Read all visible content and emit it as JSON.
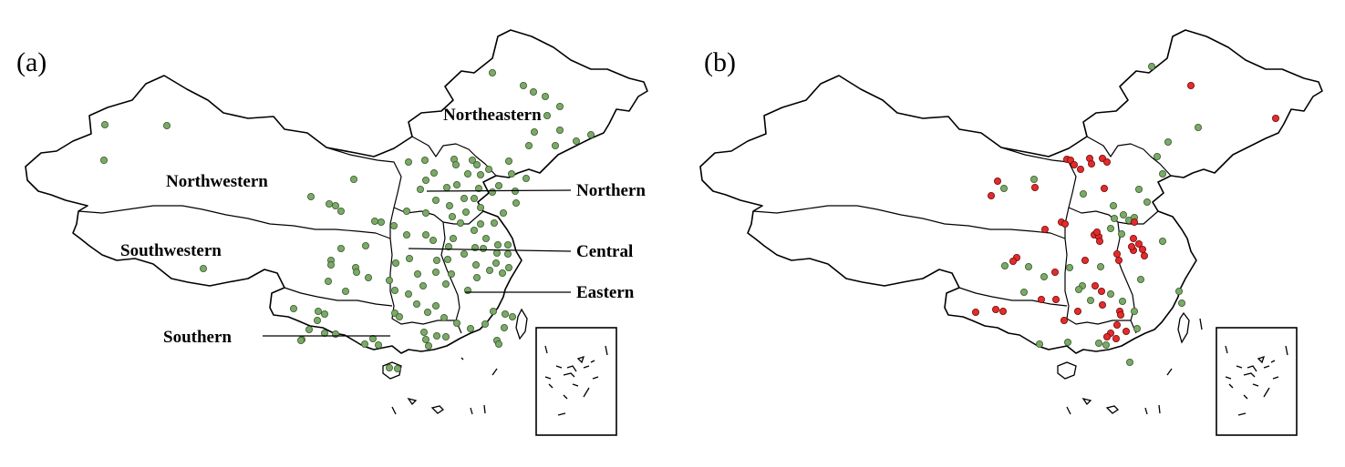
{
  "figure": {
    "panels": [
      {
        "label": "(a)",
        "regions": [
          "Northeastern",
          "Northwestern",
          "Northern",
          "Southwestern",
          "Central",
          "Eastern",
          "Southern"
        ],
        "markers": {
          "green": [
            [
              115,
              137
            ],
            [
              183,
              138
            ],
            [
              114,
              176
            ],
            [
              540,
              80
            ],
            [
              574,
              94
            ],
            [
              585,
              101
            ],
            [
              598,
              106
            ],
            [
              614,
              117
            ],
            [
              600,
              127
            ],
            [
              614,
              143
            ],
            [
              586,
              145
            ],
            [
              648,
              148
            ],
            [
              632,
              155
            ],
            [
              609,
              160
            ],
            [
              580,
              160
            ],
            [
              558,
              177
            ],
            [
              561,
              191
            ],
            [
              577,
              196
            ],
            [
              448,
              178
            ],
            [
              466,
              176
            ],
            [
              498,
              175
            ],
            [
              500,
              181
            ],
            [
              518,
              176
            ],
            [
              523,
              181
            ],
            [
              513,
              191
            ],
            [
              527,
              192
            ],
            [
              536,
              186
            ],
            [
              501,
              203
            ],
            [
              525,
              207
            ],
            [
              540,
              211
            ],
            [
              547,
              204
            ],
            [
              565,
              210
            ],
            [
              461,
              208
            ],
            [
              467,
              198
            ],
            [
              476,
              190
            ],
            [
              490,
              206
            ],
            [
              388,
              197
            ],
            [
              341,
              216
            ],
            [
              361,
              224
            ],
            [
              368,
              226
            ],
            [
              374,
              232
            ],
            [
              411,
              243
            ],
            [
              418,
              244
            ],
            [
              432,
              248
            ],
            [
              446,
              232
            ],
            [
              467,
              234
            ],
            [
              478,
              220
            ],
            [
              493,
              226
            ],
            [
              509,
              218
            ],
            [
              520,
              218
            ],
            [
              527,
              228
            ],
            [
              511,
              233
            ],
            [
              527,
              246
            ],
            [
              542,
              245
            ],
            [
              552,
              234
            ],
            [
              566,
              223
            ],
            [
              467,
              258
            ],
            [
              475,
              264
            ],
            [
              496,
              238
            ],
            [
              505,
              245
            ],
            [
              520,
              253
            ],
            [
              533,
              262
            ],
            [
              546,
              269
            ],
            [
              557,
              269
            ],
            [
              545,
              278
            ],
            [
              557,
              279
            ],
            [
              497,
              262
            ],
            [
              492,
              271
            ],
            [
              509,
              279
            ],
            [
              521,
              272
            ],
            [
              530,
              273
            ],
            [
              551,
              300
            ],
            [
              558,
              294
            ],
            [
              544,
              289
            ],
            [
              537,
              297
            ],
            [
              522,
              291
            ],
            [
              523,
              305
            ],
            [
              513,
              319
            ],
            [
              446,
              258
            ],
            [
              449,
              284
            ],
            [
              434,
              289
            ],
            [
              458,
              301
            ],
            [
              464,
              314
            ],
            [
              478,
              299
            ],
            [
              495,
              301
            ],
            [
              489,
              312
            ],
            [
              491,
              285
            ],
            [
              479,
              286
            ],
            [
              374,
              273
            ],
            [
              401,
              270
            ],
            [
              363,
              286
            ],
            [
              363,
              291
            ],
            [
              390,
              294
            ],
            [
              391,
              299
            ],
            [
              360,
              309
            ],
            [
              379,
              320
            ],
            [
              404,
              305
            ],
            [
              427,
              308
            ],
            [
              433,
              319
            ],
            [
              448,
              323
            ],
            [
              457,
              334
            ],
            [
              478,
              336
            ],
            [
              433,
              344
            ],
            [
              438,
              348
            ],
            [
              469,
              343
            ],
            [
              487,
              349
            ],
            [
              501,
              355
            ],
            [
              516,
              361
            ],
            [
              532,
              356
            ],
            [
              541,
              342
            ],
            [
              554,
              345
            ],
            [
              562,
              348
            ],
            [
              553,
              360
            ],
            [
              545,
              374
            ],
            [
              547,
              378
            ],
            [
              322,
              339
            ],
            [
              349,
              342
            ],
            [
              356,
              345
            ],
            [
              348,
              352
            ],
            [
              339,
              362
            ],
            [
              368,
              367
            ],
            [
              356,
              366
            ],
            [
              331,
              373
            ],
            [
              409,
              372
            ],
            [
              400,
              378
            ],
            [
              415,
              379
            ],
            [
              465,
              365
            ],
            [
              467,
              373
            ],
            [
              479,
              369
            ],
            [
              489,
              370
            ],
            [
              470,
              380
            ],
            [
              427,
              404
            ],
            [
              436,
              405
            ],
            [
              223,
              295
            ],
            [
              330,
              374
            ]
          ]
        }
      },
      {
        "label": "(b)",
        "markers": {
          "red": [
            [
              568,
              94
            ],
            [
              661,
              130
            ],
            [
              432,
              175
            ],
            [
              436,
              176
            ],
            [
              440,
              181
            ],
            [
              447,
              186
            ],
            [
              457,
              174
            ],
            [
              459,
              180
            ],
            [
              471,
              174
            ],
            [
              476,
              178
            ],
            [
              473,
              207
            ],
            [
              356,
              199
            ],
            [
              349,
              215
            ],
            [
              426,
              244
            ],
            [
              430,
              246
            ],
            [
              408,
              252
            ],
            [
              377,
              283
            ],
            [
              373,
              287
            ],
            [
              419,
              299
            ],
            [
              489,
              286
            ],
            [
              487,
              279
            ],
            [
              505,
              275
            ],
            [
              503,
              271
            ],
            [
              511,
              268
            ],
            [
              515,
              274
            ],
            [
              517,
              281
            ],
            [
              505,
              262
            ],
            [
              506,
              244
            ],
            [
              462,
              258
            ],
            [
              467,
              260
            ],
            [
              468,
              265
            ],
            [
              452,
              286
            ],
            [
              463,
              314
            ],
            [
              420,
              329
            ],
            [
              470,
              320
            ],
            [
              471,
              335
            ],
            [
              490,
              342
            ],
            [
              491,
              346
            ],
            [
              487,
              357
            ],
            [
              486,
              372
            ],
            [
              480,
              366
            ],
            [
              476,
              370
            ],
            [
              444,
              342
            ],
            [
              429,
              352
            ],
            [
              404,
              329
            ],
            [
              362,
              342
            ],
            [
              354,
              340
            ],
            [
              332,
              343
            ],
            [
              497,
              364
            ],
            [
              465,
              255
            ],
            [
              397,
              206
            ]
          ],
          "green": [
            [
              525,
              73
            ],
            [
              576,
              140
            ],
            [
              543,
              156
            ],
            [
              531,
              172
            ],
            [
              537,
              191
            ],
            [
              511,
              208
            ],
            [
              450,
              213
            ],
            [
              396,
              197
            ],
            [
              520,
              222
            ],
            [
              484,
              240
            ],
            [
              500,
              242
            ],
            [
              537,
              265
            ],
            [
              506,
              239
            ],
            [
              483,
              226
            ],
            [
              494,
              236
            ],
            [
              480,
              251
            ],
            [
              492,
              257
            ],
            [
              469,
              293
            ],
            [
              513,
              307
            ],
            [
              435,
              294
            ],
            [
              364,
              292
            ],
            [
              390,
              293
            ],
            [
              385,
              321
            ],
            [
              449,
              314
            ],
            [
              458,
              330
            ],
            [
              480,
              323
            ],
            [
              493,
              331
            ],
            [
              506,
              342
            ],
            [
              555,
              320
            ],
            [
              558,
              333
            ],
            [
              402,
              378
            ],
            [
              433,
              376
            ],
            [
              467,
              377
            ],
            [
              475,
              379
            ],
            [
              501,
              398
            ],
            [
              509,
              361
            ],
            [
              363,
              207
            ],
            [
              407,
              304
            ],
            [
              445,
              318
            ]
          ]
        }
      }
    ]
  },
  "colors": {
    "green_marker": "#7aa96a",
    "red_marker": "#e32b2b",
    "outline": "#000000"
  }
}
